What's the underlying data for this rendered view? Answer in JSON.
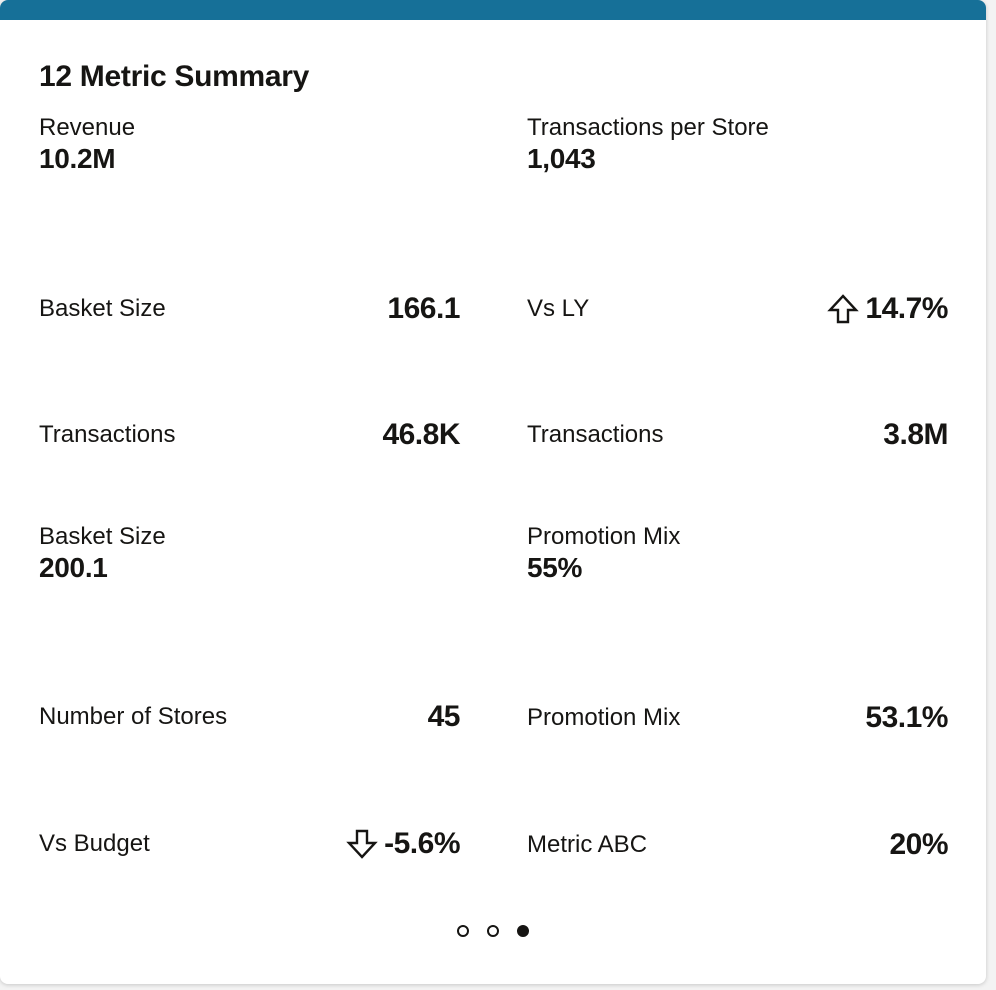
{
  "card": {
    "title": "12 Metric Summary",
    "accent_color": "#167098"
  },
  "metrics": {
    "revenue": {
      "label": "Revenue",
      "value": "10.2M"
    },
    "transactions_per_store": {
      "label": "Transactions per Store",
      "value": "1,043"
    },
    "basket_size_1": {
      "label": "Basket Size",
      "value": "166.1"
    },
    "vs_ly": {
      "label": "Vs LY",
      "value": "14.7%",
      "trend": "up"
    },
    "transactions_1": {
      "label": "Transactions",
      "value": "46.8K"
    },
    "transactions_2": {
      "label": "Transactions",
      "value": "3.8M"
    },
    "basket_size_2": {
      "label": "Basket Size",
      "value": "200.1"
    },
    "promotion_mix_1": {
      "label": "Promotion Mix",
      "value": "55%"
    },
    "number_of_stores": {
      "label": "Number of Stores",
      "value": "45"
    },
    "promotion_mix_2": {
      "label": "Promotion Mix",
      "value": "53.1%"
    },
    "vs_budget": {
      "label": "Vs Budget",
      "value": "-5.6%",
      "trend": "down"
    },
    "metric_abc": {
      "label": "Metric ABC",
      "value": "20%"
    }
  },
  "pagination": {
    "pages": 3,
    "active_page": 3
  }
}
